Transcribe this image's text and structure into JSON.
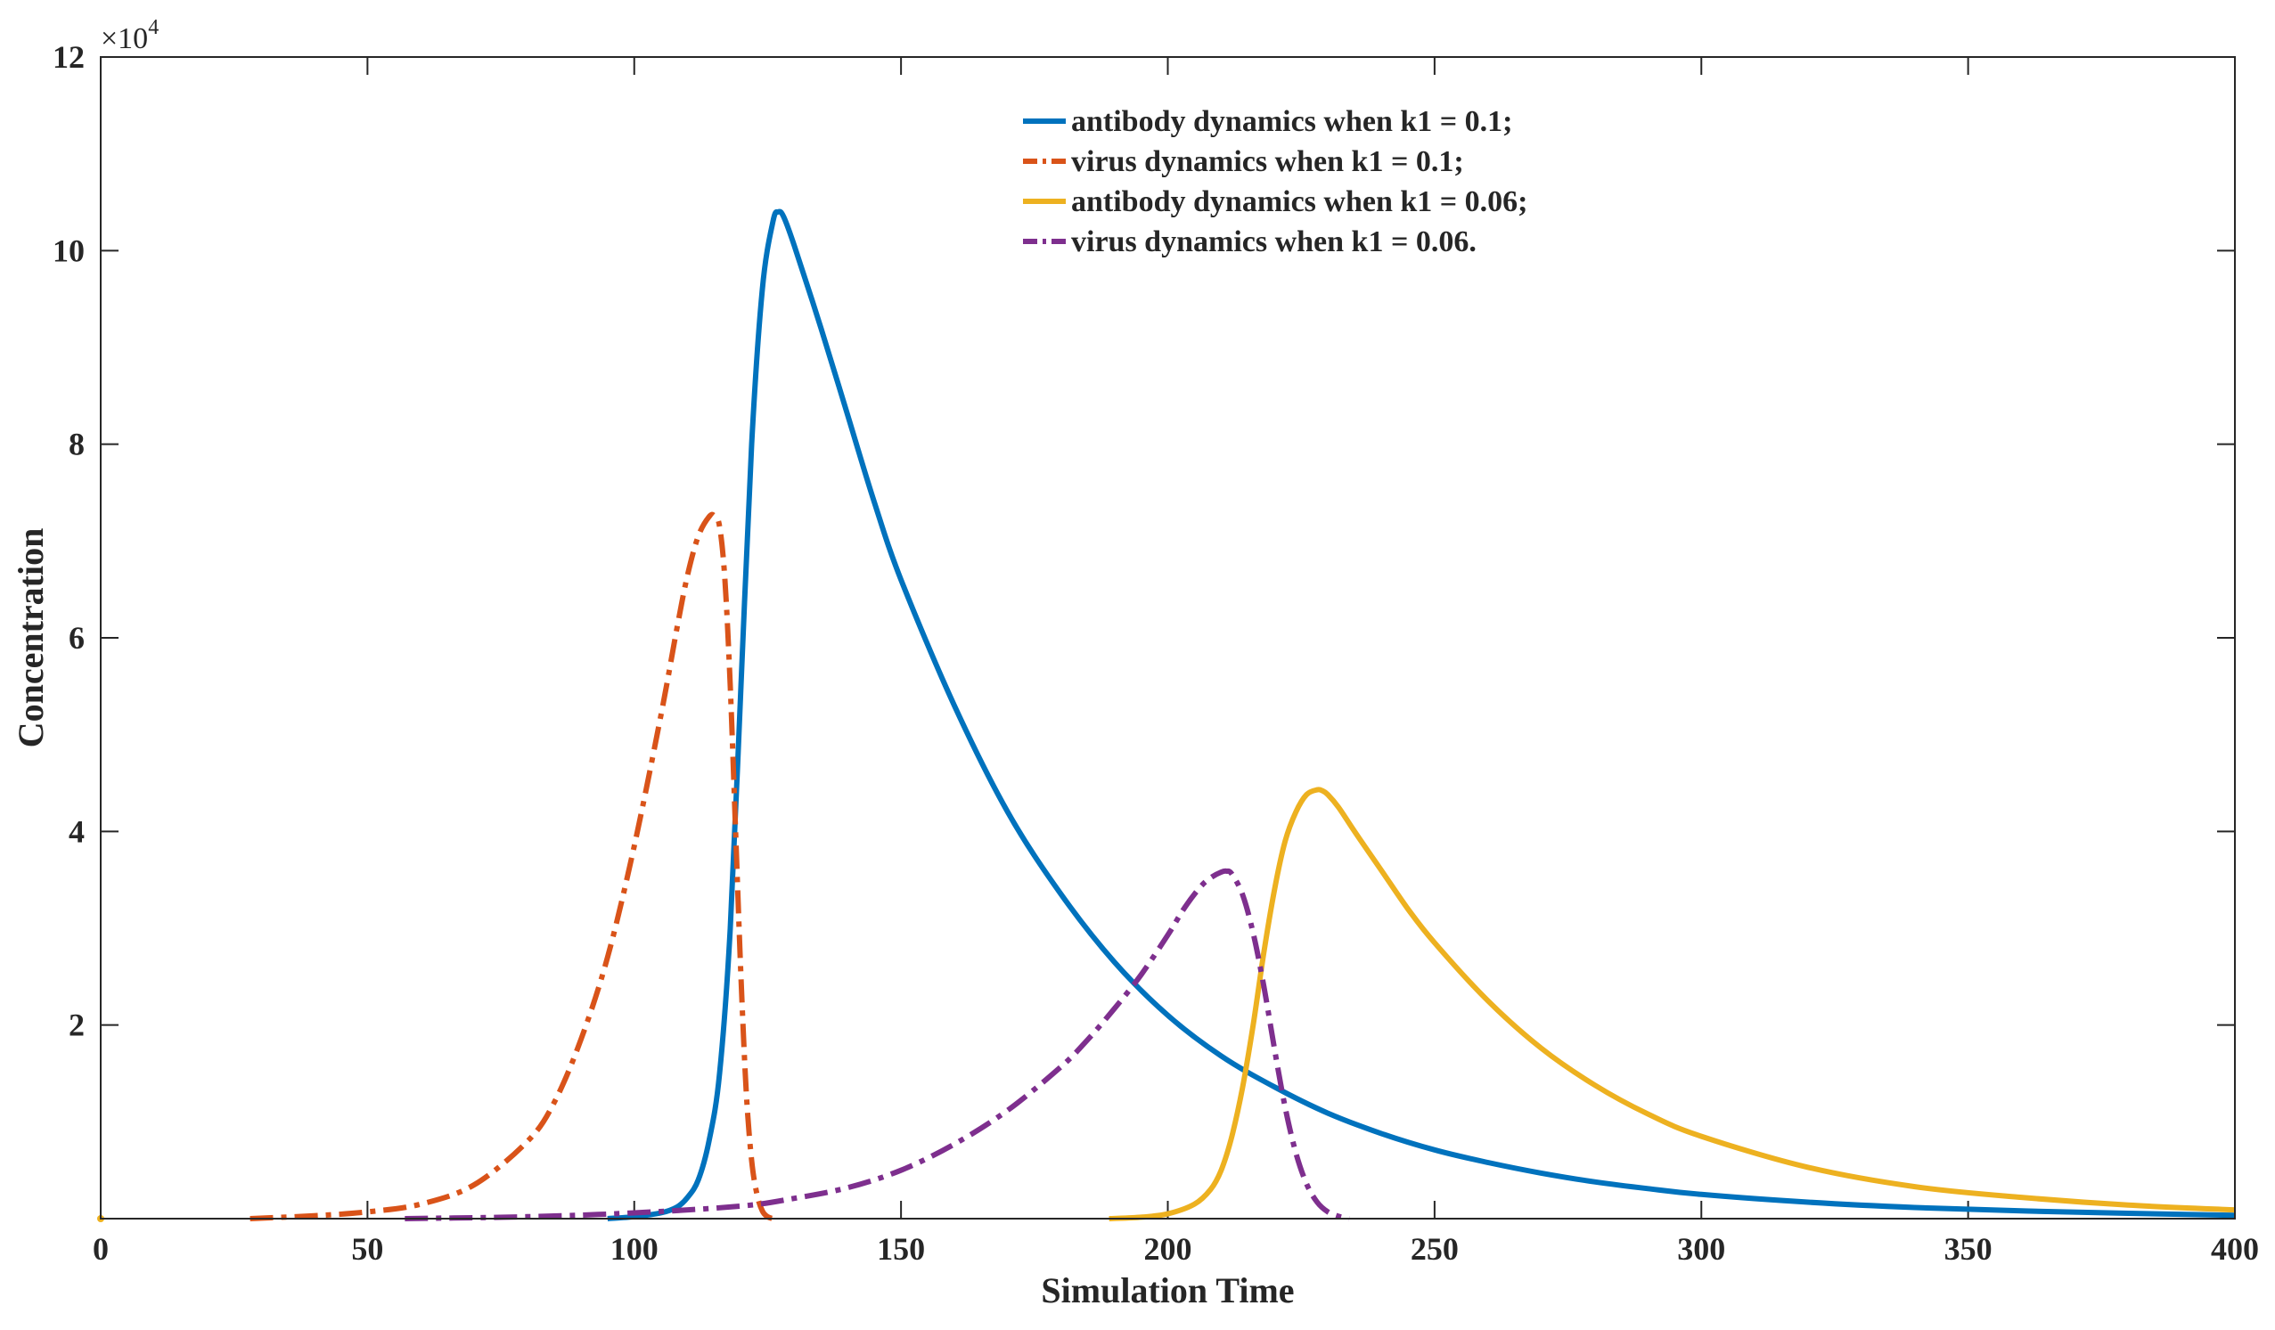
{
  "chart_data": {
    "type": "line",
    "title": "",
    "xlabel": "Simulation Time",
    "ylabel": "Concentration",
    "xlim": [
      0,
      400
    ],
    "ylim": [
      0,
      120000
    ],
    "xticks": [
      0,
      50,
      100,
      150,
      200,
      250,
      300,
      350,
      400
    ],
    "xtick_labels": [
      "0",
      "50",
      "100",
      "150",
      "200",
      "250",
      "300",
      "350",
      "400"
    ],
    "yticks": [
      20000,
      40000,
      60000,
      80000,
      100000,
      120000
    ],
    "ytick_labels": [
      "2",
      "4",
      "6",
      "8",
      "10",
      "12"
    ],
    "y_exponent": {
      "base": "×10",
      "power": "4"
    },
    "grid": false,
    "legend_position": "top-center",
    "series": [
      {
        "name": "antibody dynamics when k1 = 0.1;",
        "color": "#0072BD",
        "style": "solid",
        "x": [
          95,
          100,
          105,
          108,
          110,
          112,
          114,
          116,
          118,
          120,
          122,
          124,
          126,
          127,
          128,
          130,
          135,
          140,
          145,
          150,
          160,
          170,
          180,
          190,
          200,
          210,
          220,
          230,
          240,
          250,
          260,
          270,
          280,
          290,
          300,
          320,
          340,
          360,
          380,
          400
        ],
        "y": [
          0,
          200,
          600,
          1200,
          2200,
          4000,
          8000,
          15000,
          30000,
          55000,
          80000,
          96000,
          103000,
          104000,
          103500,
          100500,
          92000,
          83000,
          74000,
          66000,
          53000,
          42000,
          33500,
          26500,
          21000,
          16800,
          13600,
          10900,
          8800,
          7100,
          5800,
          4700,
          3800,
          3100,
          2500,
          1700,
          1150,
          800,
          550,
          350
        ]
      },
      {
        "name": "virus dynamics when k1 = 0.1;",
        "color": "#D95319",
        "style": "dashdot",
        "x": [
          28,
          40,
          50,
          60,
          70,
          80,
          85,
          90,
          95,
          100,
          105,
          108,
          110,
          112,
          114,
          115,
          116,
          117,
          118,
          119,
          120,
          121,
          122,
          123,
          124,
          125,
          126
        ],
        "y": [
          0,
          300,
          700,
          1500,
          3500,
          8000,
          12000,
          18500,
          27000,
          38500,
          52000,
          61000,
          66500,
          70500,
          72500,
          72600,
          71500,
          66000,
          55000,
          40000,
          25000,
          13000,
          6000,
          2500,
          800,
          200,
          0
        ]
      },
      {
        "name": "antibody dynamics when k1 = 0.06;",
        "color": "#EDB120",
        "style": "solid",
        "x": [
          189,
          195,
          200,
          205,
          208,
          210,
          212,
          214,
          216,
          218,
          220,
          222,
          224,
          226,
          228,
          229,
          230,
          232,
          235,
          240,
          245,
          250,
          260,
          270,
          280,
          290,
          300,
          320,
          340,
          360,
          380,
          400
        ],
        "y": [
          0,
          150,
          500,
          1500,
          3000,
          5000,
          8500,
          13500,
          20000,
          27500,
          34000,
          39000,
          42000,
          43800,
          44300,
          44200,
          43800,
          42500,
          40000,
          36000,
          32000,
          28500,
          22500,
          17600,
          13800,
          10800,
          8500,
          5300,
          3300,
          2200,
          1400,
          900
        ]
      },
      {
        "name": "virus dynamics when k1 = 0.06.",
        "color": "#7E2F8E",
        "style": "dashdot",
        "x": [
          57,
          80,
          100,
          120,
          130,
          140,
          150,
          160,
          170,
          180,
          185,
          190,
          195,
          200,
          203,
          206,
          208,
          210,
          211,
          212,
          214,
          216,
          218,
          220,
          222,
          224,
          226,
          228,
          230,
          232,
          234
        ],
        "y": [
          0,
          200,
          600,
          1300,
          2100,
          3200,
          5000,
          7700,
          11200,
          15700,
          18500,
          21700,
          25200,
          29300,
          32000,
          34200,
          35200,
          35800,
          35900,
          35600,
          33500,
          29500,
          24000,
          17500,
          11500,
          6800,
          3600,
          1700,
          700,
          250,
          0
        ]
      }
    ]
  }
}
